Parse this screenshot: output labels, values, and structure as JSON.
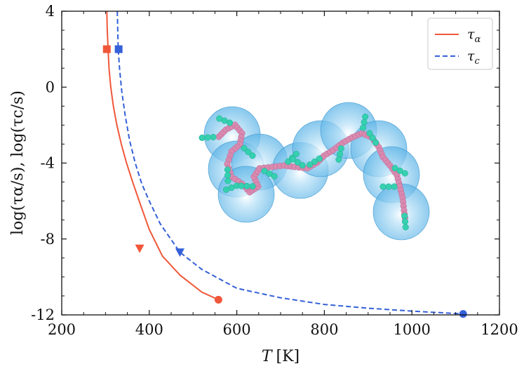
{
  "chart_data": {
    "type": "line",
    "title": "",
    "xlabel": {
      "symbol": "T",
      "unit": "[K]"
    },
    "ylabel": "log(τα/s),  log(τc/s)",
    "xlim": [
      200,
      1200
    ],
    "ylim": [
      -12,
      4
    ],
    "x_ticks": [
      200,
      400,
      600,
      800,
      1000,
      1200
    ],
    "y_ticks": [
      4,
      0,
      -4,
      -8,
      -12
    ],
    "grid": false,
    "legend_position": "top-right",
    "series": [
      {
        "name": "τα",
        "legend_symbol": "τ",
        "legend_sub": "α",
        "color": "#f0573a",
        "dash": "solid",
        "x": [
          303,
          304,
          306,
          308,
          312,
          318,
          326,
          336,
          348,
          362,
          380,
          400,
          430,
          470,
          520,
          558
        ],
        "y": [
          4.0,
          3.0,
          2.0,
          1.0,
          0.0,
          -1.0,
          -2.0,
          -3.0,
          -4.0,
          -5.0,
          -6.2,
          -7.5,
          -8.9,
          -9.9,
          -10.8,
          -11.2
        ],
        "markers": [
          {
            "shape": "square",
            "x": 303,
            "y": 2.0
          },
          {
            "shape": "triangle-down",
            "x": 378,
            "y": -8.5
          },
          {
            "shape": "circle",
            "x": 558,
            "y": -11.2
          }
        ]
      },
      {
        "name": "τc",
        "legend_symbol": "τ",
        "legend_sub": "c",
        "color": "#3460d8",
        "dash": "dashed",
        "x": [
          327,
          329,
          332,
          337,
          345,
          355,
          368,
          383,
          400,
          425,
          470,
          520,
          600,
          700,
          800,
          900,
          1000,
          1117
        ],
        "y": [
          4.0,
          2.0,
          1.0,
          -0.2,
          -1.5,
          -2.8,
          -4.0,
          -5.1,
          -6.0,
          -7.2,
          -8.7,
          -9.6,
          -10.6,
          -11.1,
          -11.45,
          -11.65,
          -11.8,
          -11.95
        ],
        "markers": [
          {
            "shape": "square",
            "x": 330,
            "y": 2.0
          },
          {
            "shape": "triangle-down",
            "x": 470,
            "y": -8.7
          },
          {
            "shape": "circle",
            "x": 1117,
            "y": -11.95
          }
        ]
      }
    ]
  },
  "inset": {
    "description": "",
    "bead_colors": {
      "sphere": "#7cc7ee",
      "backbone": "#d98ab0",
      "side": "#35d0b0"
    }
  }
}
